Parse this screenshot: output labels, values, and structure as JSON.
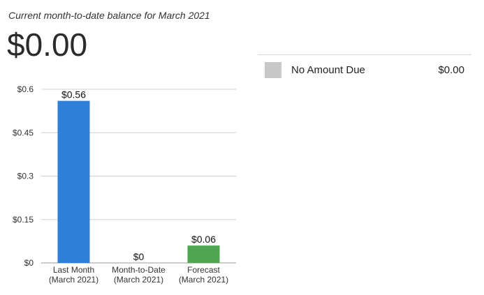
{
  "header": {
    "subtitle": "Current month-to-date balance for March 2021",
    "balance": "$0.00"
  },
  "legend": {
    "items": [
      {
        "label": "No Amount Due",
        "amount": "$0.00",
        "color": "#c8c8c8"
      }
    ]
  },
  "chart_data": {
    "type": "bar",
    "categories": [
      [
        "Last Month",
        "(March 2021)"
      ],
      [
        "Month-to-Date",
        "(March 2021)"
      ],
      [
        "Forecast",
        "(March 2021)"
      ]
    ],
    "values": [
      0.56,
      0,
      0.06
    ],
    "data_labels": [
      "$0.56",
      "$0",
      "$0.06"
    ],
    "colors": [
      "#2f7ed8",
      "#2f7ed8",
      "#4fa552"
    ],
    "ylim": [
      0,
      0.6
    ],
    "yticks": [
      0,
      0.15,
      0.3,
      0.45,
      0.6
    ],
    "ytick_labels": [
      "$0",
      "$0.15",
      "$0.3",
      "$0.45",
      "$0.6"
    ],
    "grid": true,
    "title": "",
    "xlabel": "",
    "ylabel": ""
  }
}
